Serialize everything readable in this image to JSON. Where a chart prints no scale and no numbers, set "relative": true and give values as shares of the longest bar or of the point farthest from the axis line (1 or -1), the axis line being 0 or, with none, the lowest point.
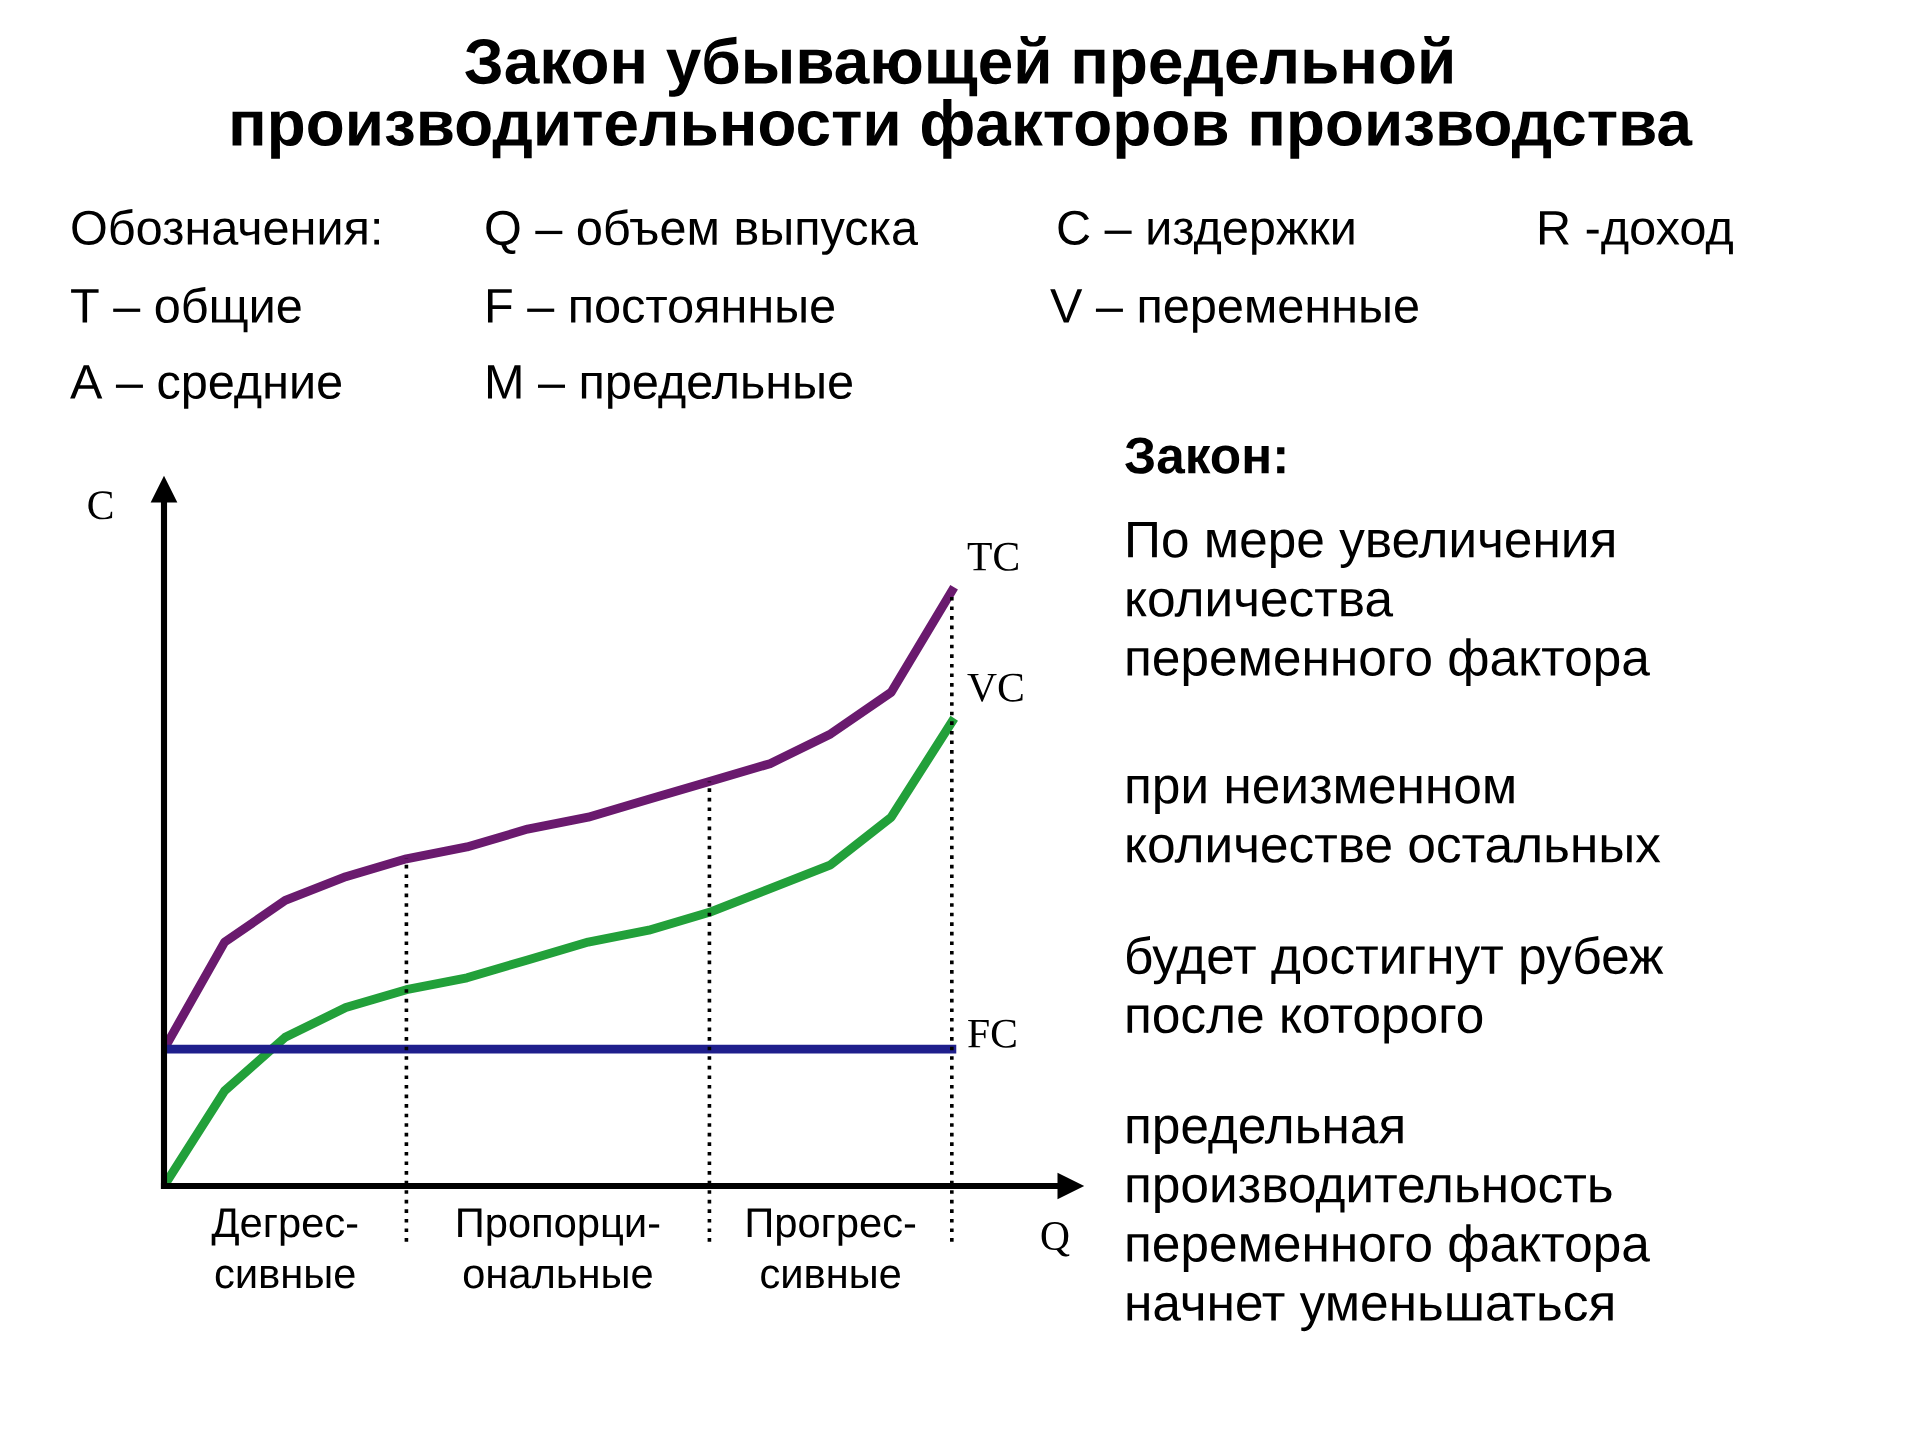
{
  "chart_data": {
    "type": "line",
    "relative": true,
    "legend": false,
    "marker": "none",
    "line_style": "solid",
    "title": "Закон убывающей предельной\nпроизводительности факторов производства",
    "xlabel": "Q",
    "ylabel": "C",
    "categories": [
      null,
      null,
      null,
      null,
      null,
      null,
      null,
      null,
      null,
      null,
      null,
      null,
      null,
      null
    ],
    "series": [
      {
        "name": "TC",
        "color": "#6a1a6e",
        "values": [
          0.23,
          0.41,
          0.48,
          0.52,
          0.55,
          0.57,
          0.6,
          0.62,
          0.65,
          0.68,
          0.71,
          0.76,
          0.83,
          1.0
        ]
      },
      {
        "name": "VC",
        "color": "#22a03a",
        "values": [
          0,
          0.16,
          0.25,
          0.3,
          0.33,
          0.35,
          0.38,
          0.41,
          0.43,
          0.46,
          0.5,
          0.54,
          0.62,
          0.78
        ]
      },
      {
        "name": "FC",
        "color": "#1f1f8c",
        "values": [
          0.23,
          0.23,
          0.23,
          0.23,
          0.23,
          0.23,
          0.23,
          0.23,
          0.23,
          0.23,
          0.23,
          0.23,
          0.23,
          0.23
        ]
      }
    ],
    "annotations": [
      "Обозначения:",
      "Q – объем выпуска",
      "С – издержки",
      "R -доход",
      "Т – общие",
      "F – постоянные",
      "V – переменные",
      "А – средние",
      "М – предельные",
      "Закон:",
      "По мере увеличения\nколичества\nпеременного фактора",
      "при неизменном\nколичестве остальных",
      "будет достигнут рубеж\nпосле которого",
      "предельная\nпроизводительность\nпеременного фактора\nначнет уменьшаться",
      "Дегрес-\nсивные",
      "Пропорци-\nональные",
      "Прогрес-\nсивные"
    ]
  }
}
